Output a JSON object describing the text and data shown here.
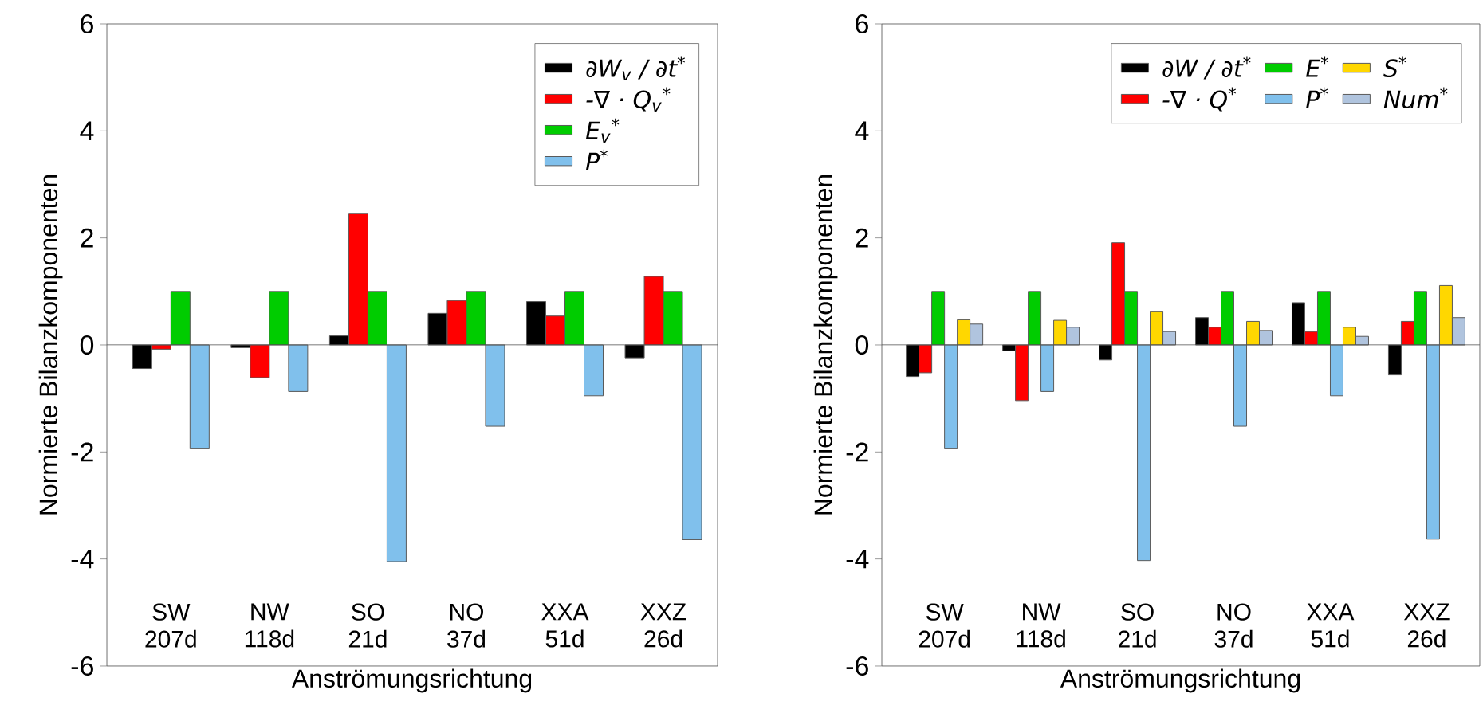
{
  "chart_data": [
    {
      "type": "bar",
      "xlabel": "Anströmungsrichtung",
      "ylabel": "Normierte Bilanzkomponenten",
      "categories": [
        "SW 207d",
        "NW 118d",
        "SO 21d",
        "NO 37d",
        "XXA 51d",
        "XXZ 26d"
      ],
      "series": [
        {
          "name": "∂W$_{v}$ / ∂t$^{*}$",
          "color": "#000000",
          "values": [
            -0.44,
            -0.05,
            0.17,
            0.59,
            0.81,
            -0.24
          ]
        },
        {
          "name": "-∇ · Q$_{v}$$^{*}$",
          "color": "#ff0000",
          "values": [
            -0.08,
            -0.61,
            2.46,
            0.83,
            0.54,
            1.28
          ]
        },
        {
          "name": "E$_{v}$$^{*}$",
          "color": "#00cc00",
          "values": [
            1.0,
            1.0,
            1.0,
            1.0,
            1.0,
            1.0
          ]
        },
        {
          "name": "P$^{*}$",
          "color": "#80c0ec",
          "values": [
            -1.93,
            -0.87,
            -4.05,
            -1.52,
            -0.95,
            -3.64
          ]
        }
      ],
      "ylim": [
        -6,
        6
      ],
      "yticks": [
        -6,
        -4,
        -2,
        0,
        2,
        4,
        6
      ],
      "legend": "top right",
      "ref_lines": [
        {
          "axis": "y",
          "value": 0
        }
      ]
    },
    {
      "type": "bar",
      "xlabel": "Anströmungsrichtung",
      "ylabel": "Normierte Bilanzkomponenten",
      "categories": [
        "SW 207d",
        "NW 118d",
        "SO 21d",
        "NO 37d",
        "XXA 51d",
        "XXZ 26d"
      ],
      "series": [
        {
          "name": "∂W / ∂t$^{*}$",
          "color": "#000000",
          "values": [
            -0.59,
            -0.11,
            -0.28,
            0.51,
            0.79,
            -0.56
          ]
        },
        {
          "name": "-∇ · Q$^{*}$",
          "color": "#ff0000",
          "values": [
            -0.52,
            -1.04,
            1.91,
            0.33,
            0.25,
            0.44
          ]
        },
        {
          "name": "E$^{*}$",
          "color": "#00cc00",
          "values": [
            1.0,
            1.0,
            1.0,
            1.0,
            1.0,
            1.0
          ]
        },
        {
          "name": "P$^{*}$",
          "color": "#80c0ec",
          "values": [
            -1.93,
            -0.87,
            -4.03,
            -1.52,
            -0.95,
            -3.63
          ]
        },
        {
          "name": "S$^{*}$",
          "color": "#ffd700",
          "values": [
            0.47,
            0.46,
            0.62,
            0.44,
            0.33,
            1.11
          ]
        },
        {
          "name": "Num$^{*}$",
          "color": "#b0c4de",
          "values": [
            0.39,
            0.33,
            0.25,
            0.27,
            0.16,
            0.51
          ]
        }
      ],
      "ylim": [
        -6,
        6
      ],
      "yticks": [
        -6,
        -4,
        -2,
        0,
        2,
        4,
        6
      ],
      "legend": "top right",
      "ref_lines": [
        {
          "axis": "y",
          "value": 0
        }
      ]
    }
  ]
}
